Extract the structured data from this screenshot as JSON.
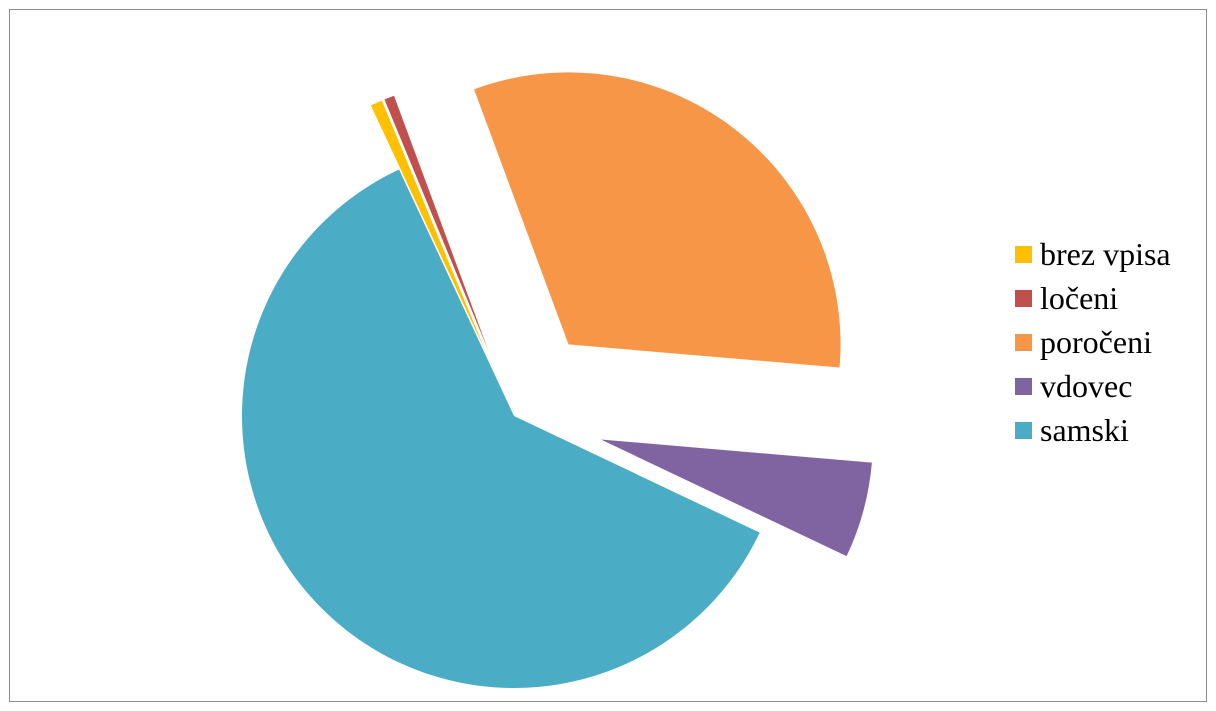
{
  "chart_data": {
    "type": "pie",
    "exploded": true,
    "legend_position": "right",
    "categories": [
      "brez vpisa",
      "ločeni",
      "poročeni",
      "vdovec",
      "samski"
    ],
    "values": [
      0.7,
      0.6,
      32.0,
      5.7,
      61.0
    ],
    "colors": [
      "#FFC000",
      "#C0504D",
      "#F79646",
      "#8064A2",
      "#4BACC6"
    ]
  },
  "legend": {
    "items": [
      {
        "label": "brez vpisa",
        "color": "#FFC000"
      },
      {
        "label": "ločeni",
        "color": "#C0504D"
      },
      {
        "label": "poročeni",
        "color": "#F79646"
      },
      {
        "label": "vdovec",
        "color": "#8064A2"
      },
      {
        "label": "samski",
        "color": "#4BACC6"
      }
    ]
  }
}
